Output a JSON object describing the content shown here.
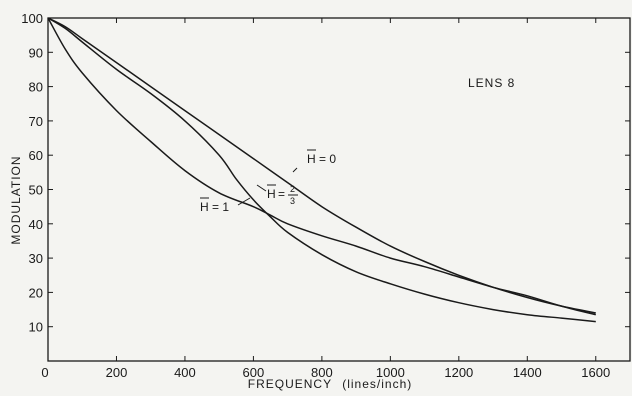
{
  "chart_data": {
    "type": "line",
    "title": "LENS 8",
    "xlabel": "FREQUENCY",
    "xlabel_units": "(lines/inch)",
    "ylabel": "MODULATION",
    "xlim": [
      0,
      1700
    ],
    "ylim": [
      0,
      100
    ],
    "x_ticks": [
      0,
      200,
      400,
      600,
      800,
      1000,
      1200,
      1400,
      1600
    ],
    "y_ticks": [
      10,
      20,
      30,
      40,
      50,
      60,
      70,
      80,
      90,
      100
    ],
    "y_tick_zero_label": "0",
    "grid": false,
    "series": [
      {
        "name": "H = 0",
        "x": [
          0,
          50,
          100,
          200,
          300,
          400,
          500,
          600,
          700,
          800,
          900,
          1000,
          1100,
          1200,
          1300,
          1400,
          1500,
          1600
        ],
        "y": [
          100,
          97.5,
          94,
          87,
          80,
          73,
          66,
          59,
          52,
          45,
          39,
          33.5,
          29,
          25,
          21.5,
          18.5,
          16,
          14
        ]
      },
      {
        "name": "H = 2/3",
        "x": [
          0,
          50,
          100,
          200,
          300,
          400,
          500,
          550,
          600,
          650,
          700,
          800,
          900,
          1000,
          1100,
          1200,
          1300,
          1400,
          1500,
          1600
        ],
        "y": [
          100,
          97,
          93,
          85,
          78,
          70,
          60,
          53,
          47,
          42,
          37.5,
          31,
          26,
          22.5,
          19.5,
          17,
          15,
          13.5,
          12.5,
          11.5
        ]
      },
      {
        "name": "H = 1",
        "x": [
          0,
          50,
          100,
          200,
          300,
          400,
          500,
          600,
          650,
          700,
          800,
          900,
          1000,
          1100,
          1200,
          1300,
          1400,
          1500,
          1600
        ],
        "y": [
          100,
          91,
          84,
          73,
          64,
          55.5,
          49,
          45,
          42.5,
          40,
          36.5,
          33.5,
          30,
          27.5,
          24.5,
          21.5,
          19,
          16,
          13.5
        ]
      }
    ],
    "annotations": [
      {
        "label_main": "H",
        "label_rest": "= 0",
        "series": "H = 0"
      },
      {
        "label_main": "H",
        "label_rest": "=",
        "fraction_num": "2",
        "fraction_den": "3",
        "series": "H = 2/3"
      },
      {
        "label_main": "H",
        "label_rest": "= 1",
        "series": "H = 1"
      }
    ]
  }
}
